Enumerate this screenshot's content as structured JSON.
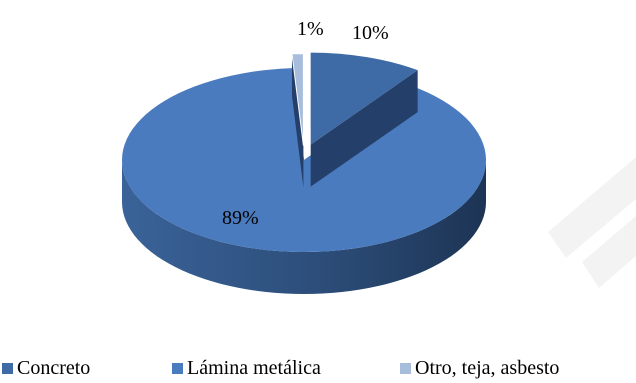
{
  "chart_data": {
    "type": "pie",
    "style": "3d-exploded",
    "categories": [
      "Concreto",
      "Lámina metálica",
      "Otro, teja, asbesto"
    ],
    "values": [
      10,
      89,
      1
    ],
    "data_labels": [
      "10%",
      "89%",
      "1%"
    ],
    "colors": [
      "#3e6aa5",
      "#4a7bbe",
      "#a7bddb"
    ],
    "legend_position": "bottom"
  },
  "legend": {
    "items": [
      {
        "label": "Concreto",
        "color": "#3e6aa5"
      },
      {
        "label": "Lámina metálica",
        "color": "#4a7bbe"
      },
      {
        "label": "Otro, teja, asbesto",
        "color": "#a7bddb"
      }
    ]
  }
}
